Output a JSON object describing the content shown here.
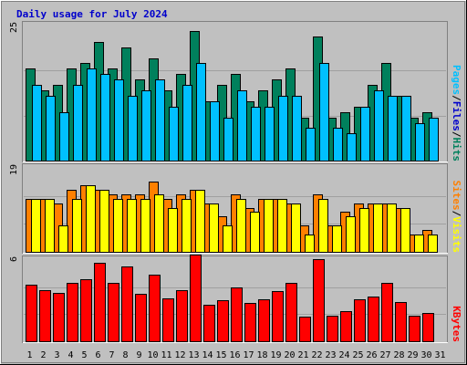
{
  "title": "Daily usage for July 2024",
  "chart_data": {
    "type": "bar",
    "title": "Daily usage for July 2024",
    "categories": [
      "1",
      "2",
      "3",
      "4",
      "5",
      "6",
      "7",
      "8",
      "9",
      "10",
      "11",
      "12",
      "13",
      "14",
      "15",
      "16",
      "17",
      "18",
      "19",
      "20",
      "21",
      "22",
      "23",
      "24",
      "25",
      "26",
      "27",
      "28",
      "29",
      "30",
      "31"
    ],
    "weekend_categories": [
      "6",
      "7",
      "13",
      "14",
      "20",
      "21",
      "27",
      "28"
    ],
    "colors": {
      "background": "#c0c0c0",
      "plot_area": "#c0c0c0",
      "hits": "#00805c",
      "files": "#00c0ff",
      "pages": "#00c0ff",
      "visits": "#ff8000",
      "sites": "#ffff00",
      "kbytes": "#ff0000",
      "weekday_label": "#000000",
      "weekend_label": "#00805c",
      "title": "#0000cc"
    },
    "panels": [
      {
        "name": "hits-files-pages",
        "ymax": 25,
        "ymax_label": "25",
        "side_labels": [
          {
            "text": "Pages",
            "color": "#00c0ff"
          },
          {
            "text": "Files",
            "color": "#0000cc"
          },
          {
            "text": "Hits",
            "color": "#00805c"
          }
        ],
        "series": [
          {
            "name": "Hits",
            "color": "#00805c",
            "values": [
              17,
              13,
              14,
              17,
              18,
              22,
              17,
              21,
              15,
              19,
              13,
              16,
              24,
              11,
              14,
              16,
              11,
              13,
              15,
              17,
              8,
              23,
              8,
              9,
              10,
              14,
              18,
              12,
              8,
              9,
              0
            ]
          },
          {
            "name": "Files",
            "color": "#00c0ff",
            "values": [
              14,
              12,
              9,
              14,
              17,
              16,
              15,
              12,
              13,
              15,
              10,
              14,
              18,
              11,
              8,
              13,
              10,
              10,
              12,
              12,
              6,
              18,
              6,
              5,
              10,
              13,
              12,
              12,
              7,
              8,
              0
            ]
          }
        ]
      },
      {
        "name": "visits-sites",
        "ymax": 19,
        "ymax_label": "19",
        "side_labels": [
          {
            "text": "Sites",
            "color": "#ff8000"
          },
          {
            "text": "Visits",
            "color": "#ffff00"
          }
        ],
        "series": [
          {
            "name": "Visits",
            "color": "#ff8000",
            "values": [
              12,
              12,
              11,
              14,
              15,
              14,
              13,
              13,
              13,
              16,
              12,
              13,
              14,
              11,
              8,
              13,
              10,
              12,
              12,
              11,
              6,
              13,
              6,
              9,
              11,
              11,
              11,
              10,
              4,
              5,
              0
            ]
          },
          {
            "name": "Sites",
            "color": "#ffff00",
            "values": [
              12,
              12,
              6,
              12,
              15,
              14,
              12,
              12,
              12,
              13,
              10,
              12,
              14,
              11,
              6,
              12,
              9,
              12,
              12,
              11,
              4,
              12,
              6,
              8,
              10,
              11,
              11,
              10,
              4,
              4,
              0
            ]
          }
        ]
      },
      {
        "name": "kbytes",
        "ymax": 6,
        "ymax_label": "6",
        "side_labels": [
          {
            "text": "KBytes",
            "color": "#ff0000"
          }
        ],
        "series": [
          {
            "name": "KBytes",
            "color": "#ff0000",
            "values": [
              4.2,
              3.8,
              3.6,
              4.3,
              4.6,
              5.8,
              4.3,
              5.5,
              3.5,
              4.9,
              3.2,
              3.8,
              6.4,
              2.7,
              3.0,
              4.0,
              2.8,
              3.1,
              3.7,
              4.3,
              1.8,
              6.1,
              1.9,
              2.2,
              3.1,
              3.3,
              4.3,
              2.9,
              1.9,
              2.1,
              0
            ]
          }
        ]
      }
    ]
  }
}
